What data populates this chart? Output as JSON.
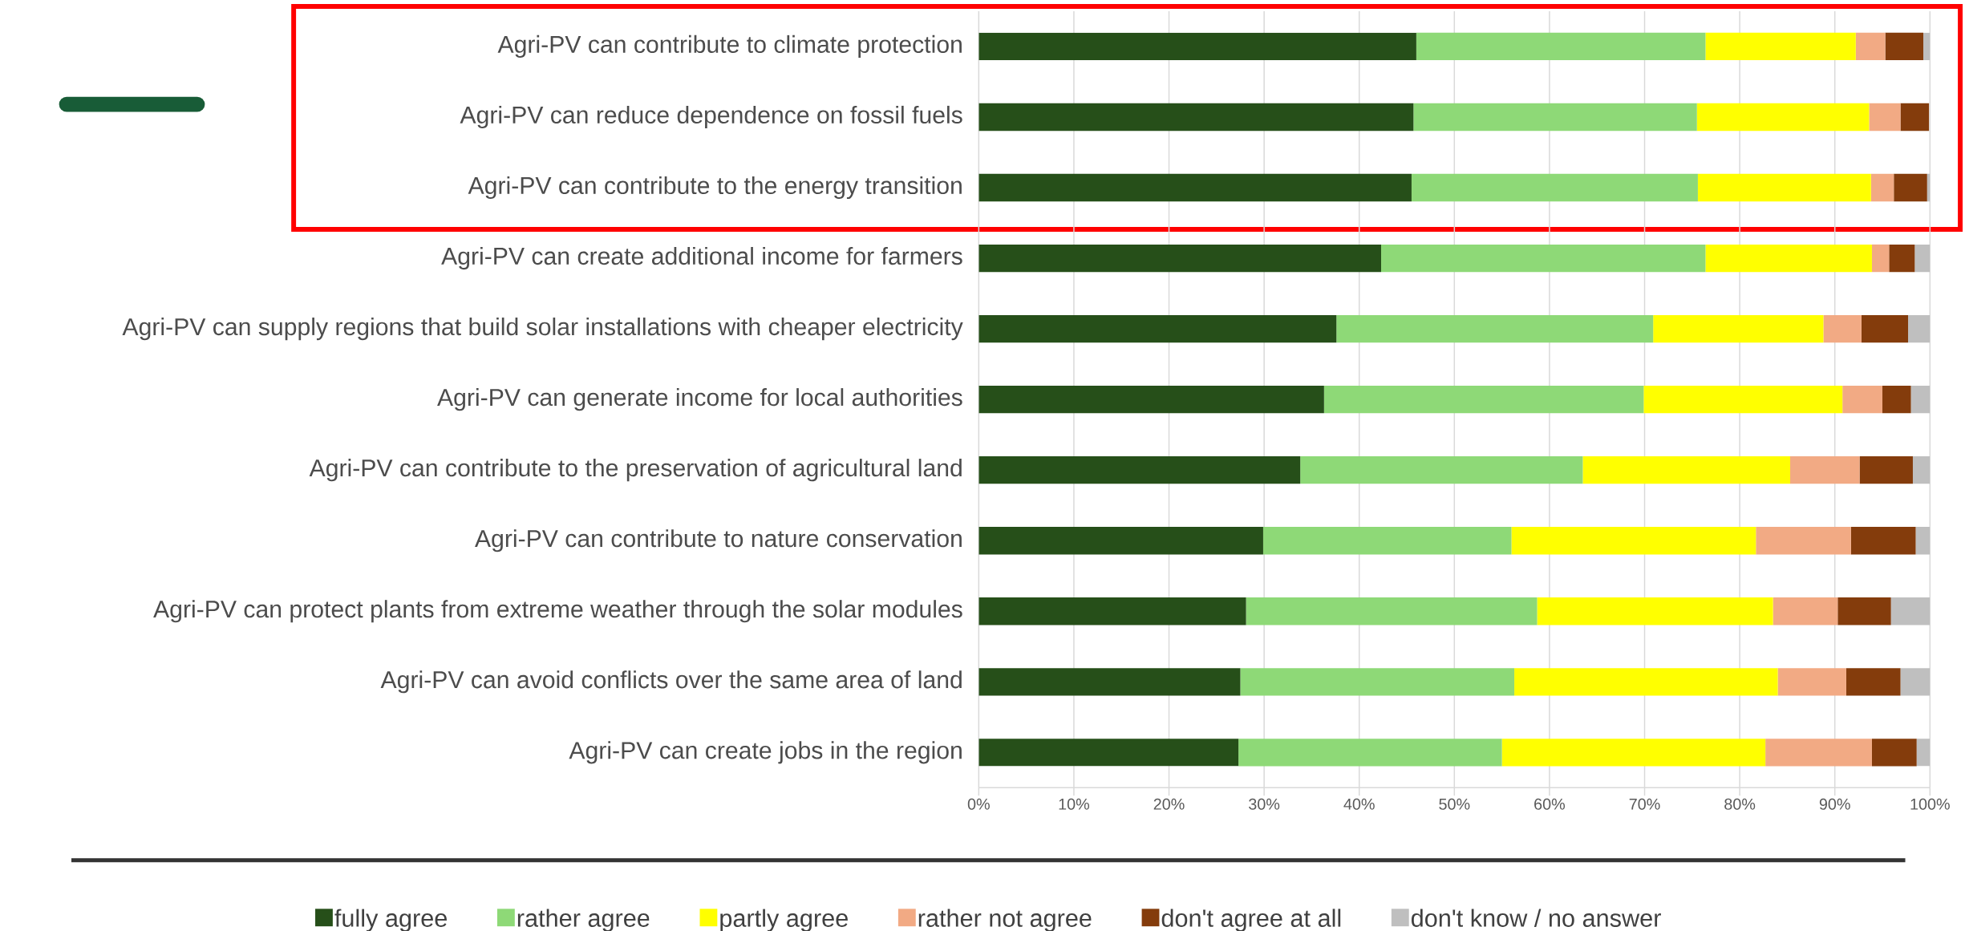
{
  "chart_data": {
    "type": "bar",
    "orientation": "horizontal",
    "stacked": true,
    "categories": [
      "Agri-PV can contribute to climate protection",
      "Agri-PV can reduce dependence on fossil fuels",
      "Agri-PV can contribute to the energy transition",
      "Agri-PV can create additional income for farmers",
      "Agri-PV can supply regions that build solar installations with cheaper electricity",
      "Agri-PV can generate income for local authorities",
      "Agri-PV can contribute to the preservation of agricultural land",
      "Agri-PV can contribute to nature conservation",
      "Agri-PV can protect plants from extreme weather through the solar modules",
      "Agri-PV can avoid conflicts over the same area of land",
      "Agri-PV can create jobs in the region"
    ],
    "series": [
      {
        "name": "fully agree",
        "color": "#264f19",
        "values": [
          46.0,
          45.7,
          45.5,
          42.3,
          37.6,
          36.3,
          33.8,
          29.9,
          28.1,
          27.5,
          27.3
        ]
      },
      {
        "name": "rather agree",
        "color": "#8ed977",
        "values": [
          30.4,
          29.8,
          30.1,
          34.1,
          33.3,
          33.6,
          29.7,
          26.1,
          30.6,
          28.8,
          27.7
        ]
      },
      {
        "name": "partly agree",
        "color": "#ffff00",
        "values": [
          15.8,
          18.1,
          18.2,
          17.5,
          17.9,
          20.9,
          21.8,
          25.7,
          24.8,
          27.7,
          27.7
        ]
      },
      {
        "name": "rather not agree",
        "color": "#f2aa84",
        "values": [
          3.1,
          3.3,
          2.4,
          1.8,
          4.0,
          4.2,
          7.3,
          10.0,
          6.8,
          7.2,
          11.2
        ]
      },
      {
        "name": "don't agree at all",
        "color": "#843c0c",
        "values": [
          4.0,
          3.0,
          3.5,
          2.7,
          4.9,
          3.0,
          5.6,
          6.8,
          5.6,
          5.7,
          4.7
        ]
      },
      {
        "name": "don't know / no answer",
        "color": "#bfbfbf",
        "values": [
          0.7,
          null,
          0.3,
          1.6,
          2.3,
          2.0,
          1.8,
          1.5,
          4.1,
          3.1,
          1.4
        ]
      }
    ],
    "xlim": [
      0,
      100
    ],
    "xticks": [
      {
        "value": 0,
        "label": "0%"
      },
      {
        "value": 10,
        "label": "10%"
      },
      {
        "value": 20,
        "label": "20%"
      },
      {
        "value": 30,
        "label": "30%"
      },
      {
        "value": 40,
        "label": "40%"
      },
      {
        "value": 50,
        "label": "50%"
      },
      {
        "value": 60,
        "label": "60%"
      },
      {
        "value": 70,
        "label": "70%"
      },
      {
        "value": 80,
        "label": "80%"
      },
      {
        "value": 90,
        "label": "90%"
      },
      {
        "value": 100,
        "label": "100%"
      }
    ],
    "grid": "x",
    "legend": "bottom"
  }
}
